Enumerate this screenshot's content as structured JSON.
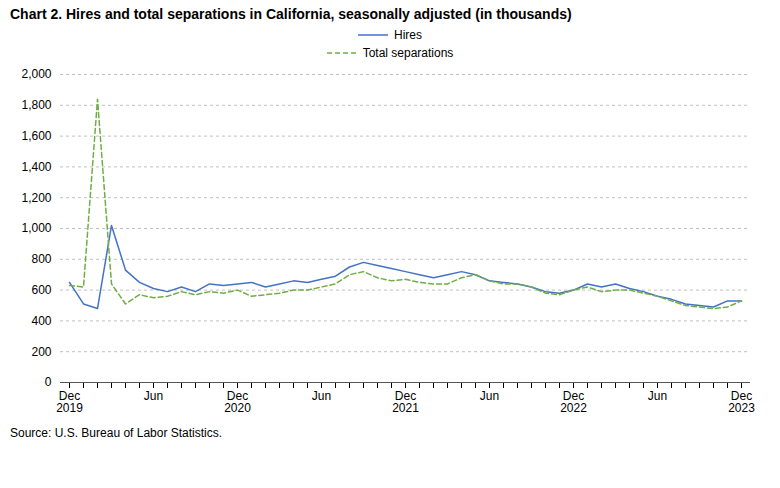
{
  "chart_data": {
    "type": "line",
    "title": "Chart 2. Hires and total separations in California, seasonally adjusted (in thousands)",
    "source": "Source: U.S. Bureau of Labor Statistics.",
    "categories": [
      "Dec\n2019",
      null,
      null,
      null,
      null,
      null,
      "Jun",
      null,
      null,
      null,
      null,
      null,
      "Dec\n2020",
      null,
      null,
      null,
      null,
      null,
      "Jun",
      null,
      null,
      null,
      null,
      null,
      "Dec\n2021",
      null,
      null,
      null,
      null,
      null,
      "Jun",
      null,
      null,
      null,
      null,
      null,
      "Dec\n2022",
      null,
      null,
      null,
      null,
      null,
      "Jun",
      null,
      null,
      null,
      null,
      null,
      "Dec\n2023"
    ],
    "series": [
      {
        "name": "Hires",
        "color": "#4472C4",
        "line_style": "solid",
        "values": [
          650,
          510,
          480,
          1020,
          730,
          650,
          610,
          590,
          620,
          590,
          640,
          630,
          640,
          650,
          620,
          640,
          660,
          650,
          670,
          690,
          750,
          780,
          760,
          740,
          720,
          700,
          680,
          700,
          720,
          700,
          660,
          650,
          640,
          620,
          590,
          580,
          600,
          640,
          620,
          640,
          610,
          590,
          560,
          540,
          510,
          500,
          490,
          530,
          530
        ]
      },
      {
        "name": "Total separations",
        "color": "#70AD47",
        "line_style": "dashed",
        "values": [
          630,
          620,
          1840,
          640,
          510,
          570,
          550,
          560,
          590,
          570,
          590,
          580,
          600,
          560,
          570,
          580,
          600,
          600,
          620,
          640,
          700,
          720,
          680,
          660,
          670,
          650,
          640,
          640,
          680,
          700,
          660,
          640,
          640,
          620,
          580,
          570,
          600,
          620,
          590,
          600,
          600,
          580,
          560,
          530,
          500,
          490,
          480,
          490,
          530
        ]
      }
    ],
    "ylim": [
      0,
      2000
    ],
    "yticks": [
      0,
      200,
      400,
      600,
      800,
      {
        "value": 1000,
        "label": "1,000"
      },
      {
        "value": 1200,
        "label": "1,200"
      },
      {
        "value": 1400,
        "label": "1,400"
      },
      {
        "value": 1600,
        "label": "1,600"
      },
      {
        "value": 1800,
        "label": "1,800"
      },
      {
        "value": 2000,
        "label": "2,000"
      }
    ],
    "grid": true,
    "legend": "top"
  }
}
